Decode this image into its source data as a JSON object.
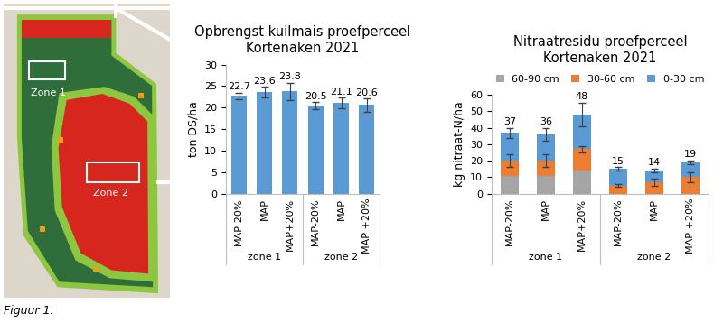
{
  "map": {
    "zones": [
      "Zone 1",
      "Zone 2"
    ]
  },
  "caption": "Figuur 1:",
  "chart_data": [
    {
      "type": "bar",
      "title": "Opbrengst kuilmais proefperceel\nKortenaken 2021",
      "ylabel": "ton DS/ha",
      "categories": [
        "MAP-20%",
        "MAP",
        "MAP+20%",
        "MAP-20%",
        "MAP",
        "MAP +20%"
      ],
      "groups": [
        "zone 1",
        "zone 2"
      ],
      "values": [
        22.7,
        23.6,
        23.8,
        20.5,
        21.1,
        20.6
      ],
      "errors": [
        0.8,
        1.2,
        2.0,
        0.8,
        1.2,
        1.5
      ],
      "color": "#5b9bd5",
      "ylim": [
        0,
        30
      ],
      "yticks": [
        0,
        5,
        10,
        15,
        20,
        25,
        30
      ],
      "data_labels": true
    },
    {
      "type": "bar",
      "stacked": true,
      "title": "Nitraatresidu proefperceel\nKortenaken 2021",
      "ylabel": "kg nitraat-N/ha",
      "categories": [
        "MAP-20%",
        "MAP",
        "MAP+20%",
        "MAP-20%",
        "MAP",
        "MAP +20%"
      ],
      "groups": [
        "zone 1",
        "zone 2"
      ],
      "series": [
        {
          "name": "60-90 cm",
          "color": "#a5a5a5",
          "values": [
            11,
            11,
            14,
            0,
            0,
            0
          ]
        },
        {
          "name": "30-60 cm",
          "color": "#ed7d31",
          "values": [
            9,
            9,
            13,
            5,
            7,
            10
          ],
          "errors": [
            4,
            4,
            2,
            1,
            2,
            3
          ]
        },
        {
          "name": "0-30 cm",
          "color": "#5b9bd5",
          "values": [
            17,
            16,
            21,
            10,
            7,
            9
          ],
          "errors": [
            3,
            4,
            7,
            1,
            1,
            1
          ]
        }
      ],
      "totals": [
        37,
        36,
        48,
        15,
        14,
        19
      ],
      "ylim": [
        0,
        60
      ],
      "yticks": [
        0,
        10,
        20,
        30,
        40,
        50,
        60
      ],
      "legend": "top",
      "data_labels": true
    }
  ]
}
